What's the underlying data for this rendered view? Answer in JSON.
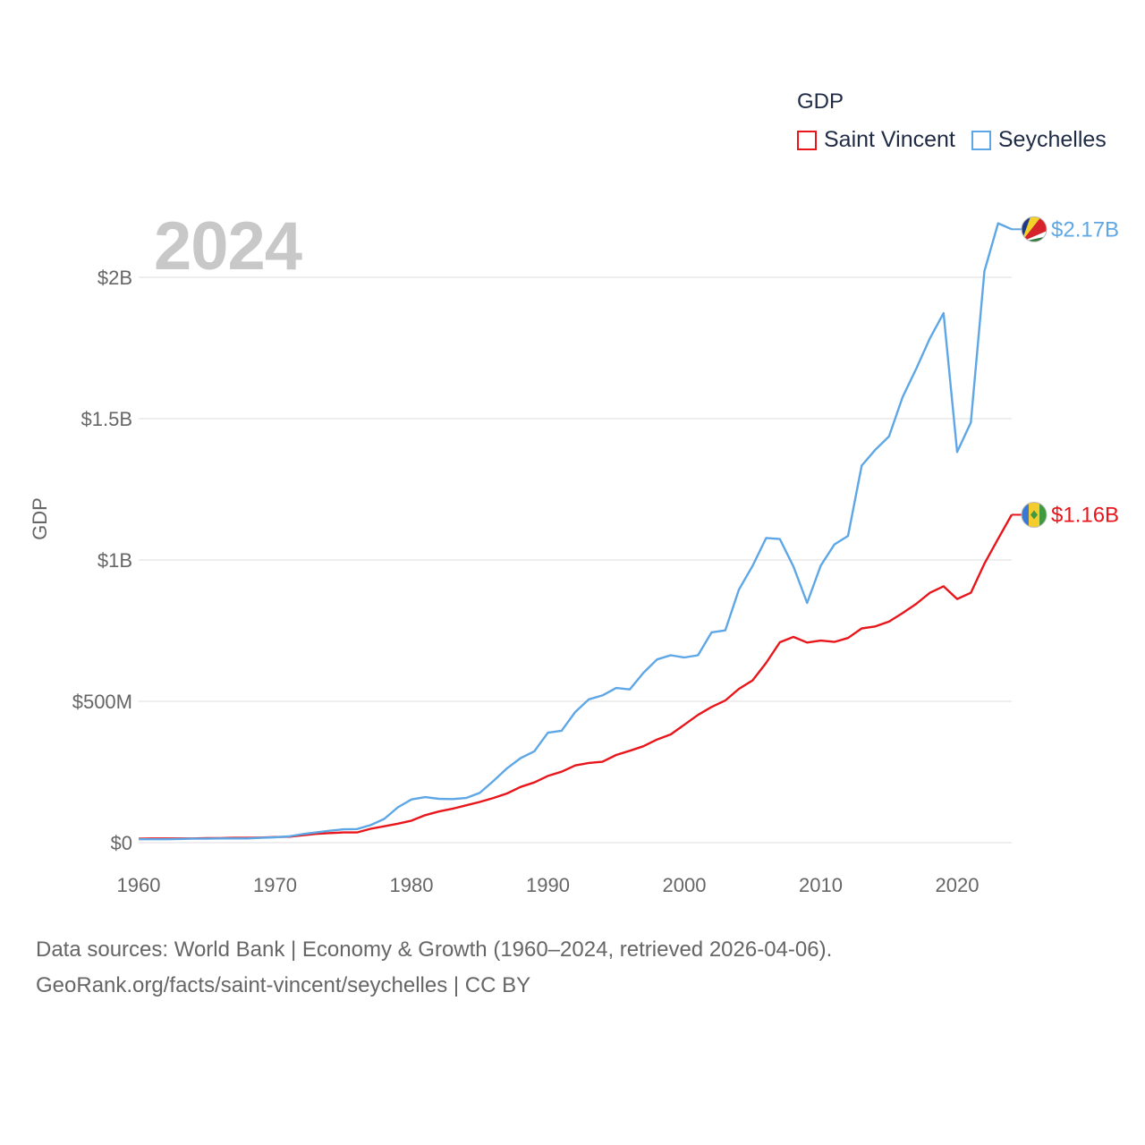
{
  "year_label": "2024",
  "footer": {
    "line1": "Data sources: World Bank | Economy & Growth (1960–2024, retrieved 2026-04-06).",
    "line2": "GeoRank.org/facts/saint-vincent/seychelles | CC BY"
  },
  "legend": {
    "title": "GDP",
    "items": [
      {
        "label": "Saint Vincent",
        "color": "#e8151b"
      },
      {
        "label": "Seychelles",
        "color": "#5ea7e6"
      }
    ]
  },
  "chart_data": {
    "type": "line",
    "title": "",
    "xlabel": "",
    "ylabel": "GDP",
    "xlim": [
      1960,
      2024
    ],
    "ylim": [
      0,
      2200000000
    ],
    "x_ticks": [
      1960,
      1970,
      1980,
      1990,
      2000,
      2010,
      2020
    ],
    "x_tick_labels": [
      "1960",
      "1970",
      "1980",
      "1990",
      "2000",
      "2010",
      "2020"
    ],
    "y_ticks": [
      0,
      500000000,
      1000000000,
      1500000000,
      2000000000
    ],
    "y_tick_labels": [
      "$0",
      "$500M",
      "$1B",
      "$1.5B",
      "$2B"
    ],
    "grid": true,
    "legend_position": "top-right",
    "x": [
      1960,
      1961,
      1962,
      1963,
      1964,
      1965,
      1966,
      1967,
      1968,
      1969,
      1970,
      1971,
      1972,
      1973,
      1974,
      1975,
      1976,
      1977,
      1978,
      1979,
      1980,
      1981,
      1982,
      1983,
      1984,
      1985,
      1986,
      1987,
      1988,
      1989,
      1990,
      1991,
      1992,
      1993,
      1994,
      1995,
      1996,
      1997,
      1998,
      1999,
      2000,
      2001,
      2002,
      2003,
      2004,
      2005,
      2006,
      2007,
      2008,
      2009,
      2010,
      2011,
      2012,
      2013,
      2014,
      2015,
      2016,
      2017,
      2018,
      2019,
      2020,
      2021,
      2022,
      2023,
      2024
    ],
    "series": [
      {
        "name": "Saint Vincent",
        "color": "#e8151b",
        "end_label": "$1.16B",
        "values": [
          14000000,
          15000000,
          15000000,
          15000000,
          15000000,
          16000000,
          16000000,
          17000000,
          17000000,
          18000000,
          20000000,
          21000000,
          26000000,
          31000000,
          34000000,
          36000000,
          36000000,
          49000000,
          58000000,
          67000000,
          78000000,
          97000000,
          110000000,
          120000000,
          132000000,
          144000000,
          158000000,
          174000000,
          197000000,
          213000000,
          236000000,
          251000000,
          273000000,
          282000000,
          286000000,
          310000000,
          325000000,
          341000000,
          365000000,
          383000000,
          417000000,
          452000000,
          480000000,
          503000000,
          544000000,
          574000000,
          636000000,
          709000000,
          728000000,
          708000000,
          715000000,
          710000000,
          724000000,
          758000000,
          765000000,
          782000000,
          812000000,
          845000000,
          884000000,
          907000000,
          862000000,
          884000000,
          987000000,
          1075000000,
          1160000000
        ]
      },
      {
        "name": "Seychelles",
        "color": "#5ea7e6",
        "end_label": "$2.17B",
        "values": [
          12000000,
          12000000,
          12000000,
          13000000,
          14000000,
          14000000,
          15000000,
          15000000,
          15000000,
          17000000,
          19000000,
          22000000,
          30000000,
          36000000,
          42000000,
          47000000,
          48000000,
          62000000,
          84000000,
          125000000,
          153000000,
          161000000,
          155000000,
          154000000,
          158000000,
          176000000,
          218000000,
          263000000,
          299000000,
          323000000,
          389000000,
          396000000,
          462000000,
          507000000,
          521000000,
          547000000,
          542000000,
          601000000,
          648000000,
          663000000,
          655000000,
          663000000,
          744000000,
          751000000,
          895000000,
          979000000,
          1078000000,
          1074000000,
          977000000,
          848000000,
          980000000,
          1055000000,
          1085000000,
          1334000000,
          1390000000,
          1437000000,
          1576000000,
          1677000000,
          1784000000,
          1873000000,
          1382000000,
          1486000000,
          2022000000,
          2191000000,
          2170000000
        ]
      }
    ]
  }
}
